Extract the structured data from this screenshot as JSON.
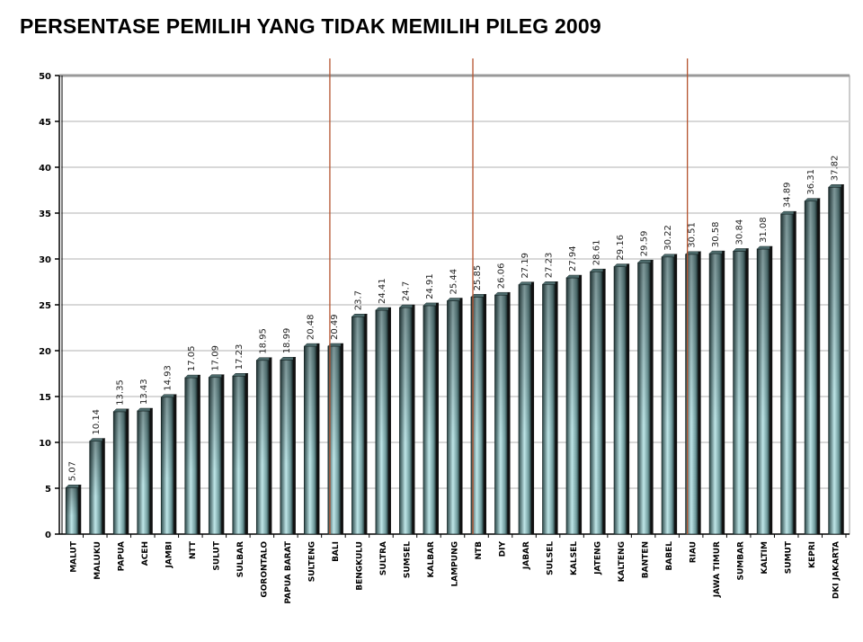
{
  "chart_data": {
    "type": "bar",
    "title": "PERSENTASE PEMILIH YANG TIDAK MEMILIH PILEG 2009",
    "xlabel": "",
    "ylabel": "",
    "ylim": [
      0,
      50
    ],
    "yticks": [
      0,
      5,
      10,
      15,
      20,
      25,
      30,
      35,
      40,
      45,
      50
    ],
    "grid": true,
    "categories": [
      "MALUT",
      "MALUKU",
      "PAPUA",
      "ACEH",
      "JAMBI",
      "NTT",
      "SULUT",
      "SULBAR",
      "GORONTALO",
      "PAPUA BARAT",
      "SULTENG",
      "BALI",
      "BENGKULU",
      "SULTRA",
      "SUMSEL",
      "KALBAR",
      "LAMPUNG",
      "NTB",
      "DIY",
      "JABAR",
      "SULSEL",
      "KALSEL",
      "JATENG",
      "KALTENG",
      "BANTEN",
      "BABEL",
      "RIAU",
      "JAWA TIMUR",
      "SUMBAR",
      "KALTIM",
      "SUMUT",
      "KEPRI",
      "DKI JAKARTA"
    ],
    "values": [
      5.07,
      10.14,
      13.35,
      13.43,
      14.93,
      17.05,
      17.09,
      17.23,
      18.95,
      18.99,
      20.48,
      20.49,
      23.7,
      24.41,
      24.7,
      24.91,
      25.44,
      25.85,
      26.06,
      27.19,
      27.23,
      27.94,
      28.61,
      29.16,
      29.59,
      30.22,
      30.51,
      30.58,
      30.84,
      31.08,
      34.89,
      36.31,
      37.82
    ],
    "value_labels": [
      "5.07",
      "10.14",
      "13.35",
      "13.43",
      "14.93",
      "17.05",
      "17.09",
      "17.23",
      "18.95",
      "18.99",
      "20.48",
      "20.49",
      "23.7",
      "24.41",
      "24.7",
      "24.91",
      "25.44",
      "25.85",
      "26.06",
      "27.19",
      "27.23",
      "27.94",
      "28.61",
      "29.16",
      "29.59",
      "30.22",
      "30.51",
      "30.58",
      "30.84",
      "31.08",
      "34.89",
      "36.31",
      "37.82"
    ],
    "marker_lines_at": [
      "BALI",
      "NTB",
      "RIAU"
    ],
    "colors": {
      "bar": "#6f9a9c",
      "bar_light": "#bfe6e8",
      "bar_dark": "#1f3334",
      "marker_line": "#b5532e",
      "grid": "#d8d8d8"
    }
  }
}
